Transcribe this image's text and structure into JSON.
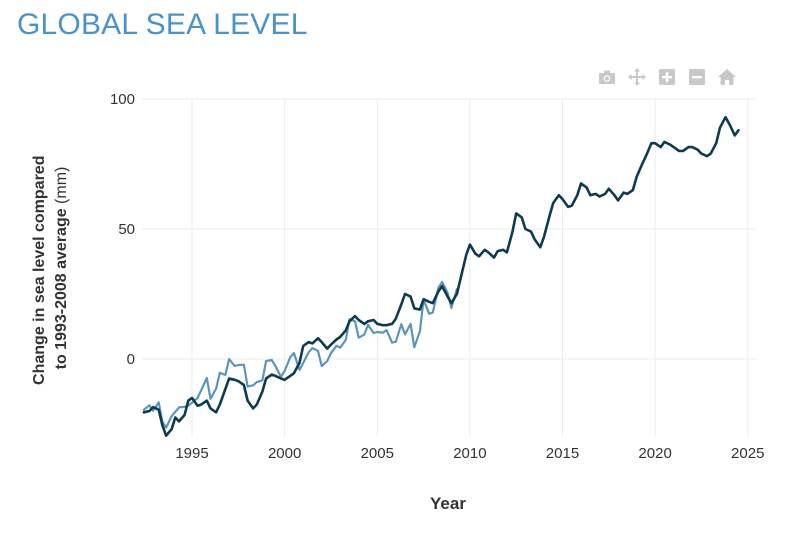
{
  "page": {
    "title": "GLOBAL SEA LEVEL"
  },
  "modebar": {
    "buttons": [
      {
        "name": "camera-icon"
      },
      {
        "name": "pan-icon"
      },
      {
        "name": "zoom-in-icon"
      },
      {
        "name": "zoom-out-icon"
      },
      {
        "name": "home-icon"
      }
    ]
  },
  "colors": {
    "title": "#4a93c9",
    "series_dark": "#0d3b4f",
    "series_light": "#5b95bd",
    "icon": "#c8c8c8",
    "grid": "#ececec"
  },
  "chart_data": {
    "type": "line",
    "xlabel": "Year",
    "ylabel_bold": "Change in sea level compared to 1993-2008 average",
    "ylabel_unit": "(mm)",
    "xlim": [
      1992.3,
      2025.5
    ],
    "ylim": [
      -30,
      100
    ],
    "xticks": [
      1995,
      2000,
      2005,
      2010,
      2015,
      2020,
      2025
    ],
    "yticks": [
      0,
      50,
      100
    ],
    "grid": true,
    "series": [
      {
        "color": "#5b95bd",
        "points": [
          [
            1992.4,
            -19.5
          ],
          [
            1992.7,
            -17.8
          ],
          [
            1992.9,
            -19.9
          ],
          [
            1993.2,
            -16.7
          ],
          [
            1993.4,
            -24.1
          ],
          [
            1993.6,
            -26.4
          ],
          [
            1993.9,
            -22.0
          ],
          [
            1994.1,
            -20.3
          ],
          [
            1994.3,
            -18.6
          ],
          [
            1994.6,
            -18.4
          ],
          [
            1994.8,
            -17.9
          ],
          [
            1995.0,
            -16.8
          ],
          [
            1995.3,
            -15.0
          ],
          [
            1995.5,
            -11.9
          ],
          [
            1995.8,
            -7.3
          ],
          [
            1996.0,
            -15.3
          ],
          [
            1996.3,
            -11.4
          ],
          [
            1996.5,
            -5.3
          ],
          [
            1996.8,
            -6.1
          ],
          [
            1997.0,
            0.0
          ],
          [
            1997.3,
            -2.7
          ],
          [
            1997.5,
            -2.3
          ],
          [
            1997.8,
            -2.2
          ],
          [
            1998.0,
            -10.6
          ],
          [
            1998.3,
            -10.1
          ],
          [
            1998.5,
            -8.9
          ],
          [
            1998.8,
            -8.2
          ],
          [
            1999.0,
            -0.8
          ],
          [
            1999.3,
            -0.4
          ],
          [
            1999.5,
            -2.7
          ],
          [
            1999.8,
            -6.9
          ],
          [
            2000.0,
            -4.6
          ],
          [
            2000.3,
            0.6
          ],
          [
            2000.5,
            2.3
          ],
          [
            2000.8,
            -4.2
          ],
          [
            2001.0,
            -1.5
          ],
          [
            2001.3,
            2.6
          ],
          [
            2001.5,
            4.2
          ],
          [
            2001.8,
            3.1
          ],
          [
            2002.0,
            -2.7
          ],
          [
            2002.3,
            -0.8
          ],
          [
            2002.5,
            2.2
          ],
          [
            2002.8,
            5.1
          ],
          [
            2003.0,
            4.4
          ],
          [
            2003.3,
            7.4
          ],
          [
            2003.5,
            15.3
          ],
          [
            2003.8,
            14.5
          ],
          [
            2004.0,
            8.2
          ],
          [
            2004.3,
            9.4
          ],
          [
            2004.5,
            13.1
          ],
          [
            2004.8,
            10.0
          ],
          [
            2005.0,
            10.4
          ],
          [
            2005.3,
            10.1
          ],
          [
            2005.5,
            11.1
          ],
          [
            2005.8,
            6.3
          ],
          [
            2006.0,
            6.6
          ],
          [
            2006.3,
            13.4
          ],
          [
            2006.5,
            9.5
          ],
          [
            2006.8,
            13.5
          ],
          [
            2007.0,
            4.5
          ],
          [
            2007.3,
            10.7
          ],
          [
            2007.5,
            22.9
          ],
          [
            2007.8,
            17.4
          ],
          [
            2008.0,
            17.9
          ],
          [
            2008.3,
            27.4
          ],
          [
            2008.5,
            29.6
          ],
          [
            2008.8,
            25.5
          ],
          [
            2009.0,
            19.6
          ],
          [
            2009.3,
            26.9
          ]
        ]
      },
      {
        "color": "#0d3b4f",
        "points": [
          [
            1992.4,
            -20.5
          ],
          [
            1992.7,
            -20.0
          ],
          [
            1992.9,
            -18.5
          ],
          [
            1993.2,
            -19.5
          ],
          [
            1993.4,
            -25.5
          ],
          [
            1993.6,
            -29.5
          ],
          [
            1993.9,
            -27.0
          ],
          [
            1994.1,
            -22.5
          ],
          [
            1994.3,
            -24.0
          ],
          [
            1994.6,
            -21.5
          ],
          [
            1994.8,
            -16.0
          ],
          [
            1995.0,
            -15.0
          ],
          [
            1995.3,
            -18.0
          ],
          [
            1995.5,
            -17.5
          ],
          [
            1995.8,
            -16.0
          ],
          [
            1996.0,
            -19.0
          ],
          [
            1996.3,
            -20.5
          ],
          [
            1996.5,
            -17.5
          ],
          [
            1996.8,
            -11.5
          ],
          [
            1997.0,
            -7.5
          ],
          [
            1997.3,
            -8.0
          ],
          [
            1997.5,
            -8.5
          ],
          [
            1997.8,
            -10.0
          ],
          [
            1998.0,
            -16.0
          ],
          [
            1998.3,
            -19.0
          ],
          [
            1998.5,
            -17.5
          ],
          [
            1998.8,
            -12.5
          ],
          [
            1999.0,
            -7.5
          ],
          [
            1999.3,
            -6.0
          ],
          [
            1999.5,
            -6.5
          ],
          [
            1999.8,
            -7.5
          ],
          [
            2000.0,
            -8.0
          ],
          [
            2000.3,
            -6.5
          ],
          [
            2000.5,
            -5.5
          ],
          [
            2000.8,
            -1.5
          ],
          [
            2001.0,
            5.0
          ],
          [
            2001.3,
            6.5
          ],
          [
            2001.5,
            6.0
          ],
          [
            2001.8,
            8.0
          ],
          [
            2002.0,
            6.5
          ],
          [
            2002.3,
            4.0
          ],
          [
            2002.5,
            5.5
          ],
          [
            2002.8,
            7.5
          ],
          [
            2003.0,
            8.5
          ],
          [
            2003.3,
            11.0
          ],
          [
            2003.5,
            14.5
          ],
          [
            2003.8,
            16.5
          ],
          [
            2004.0,
            15.0
          ],
          [
            2004.3,
            13.5
          ],
          [
            2004.5,
            14.5
          ],
          [
            2004.8,
            15.0
          ],
          [
            2005.0,
            13.5
          ],
          [
            2005.3,
            13.0
          ],
          [
            2005.5,
            13.0
          ],
          [
            2005.8,
            13.5
          ],
          [
            2006.0,
            15.5
          ],
          [
            2006.3,
            21.0
          ],
          [
            2006.5,
            25.0
          ],
          [
            2006.8,
            24.0
          ],
          [
            2007.0,
            19.5
          ],
          [
            2007.3,
            19.0
          ],
          [
            2007.5,
            23.0
          ],
          [
            2007.8,
            22.0
          ],
          [
            2008.0,
            21.5
          ],
          [
            2008.3,
            26.0
          ],
          [
            2008.5,
            28.0
          ],
          [
            2008.8,
            24.0
          ],
          [
            2009.0,
            21.5
          ],
          [
            2009.3,
            25.0
          ],
          [
            2009.5,
            31.0
          ],
          [
            2009.8,
            40.0
          ],
          [
            2010.0,
            44.0
          ],
          [
            2010.3,
            40.5
          ],
          [
            2010.5,
            39.5
          ],
          [
            2010.8,
            42.0
          ],
          [
            2011.0,
            41.0
          ],
          [
            2011.3,
            39.0
          ],
          [
            2011.5,
            41.5
          ],
          [
            2011.8,
            42.0
          ],
          [
            2012.0,
            41.0
          ],
          [
            2012.3,
            49.0
          ],
          [
            2012.5,
            56.0
          ],
          [
            2012.8,
            54.5
          ],
          [
            2013.0,
            50.0
          ],
          [
            2013.3,
            49.0
          ],
          [
            2013.5,
            46.0
          ],
          [
            2013.8,
            43.0
          ],
          [
            2014.0,
            47.0
          ],
          [
            2014.3,
            55.0
          ],
          [
            2014.5,
            60.0
          ],
          [
            2014.8,
            63.0
          ],
          [
            2015.0,
            61.5
          ],
          [
            2015.3,
            58.5
          ],
          [
            2015.5,
            59.0
          ],
          [
            2015.8,
            63.0
          ],
          [
            2016.0,
            67.5
          ],
          [
            2016.3,
            66.0
          ],
          [
            2016.5,
            63.0
          ],
          [
            2016.8,
            63.5
          ],
          [
            2017.0,
            62.5
          ],
          [
            2017.3,
            63.5
          ],
          [
            2017.5,
            65.5
          ],
          [
            2017.8,
            63.0
          ],
          [
            2018.0,
            61.0
          ],
          [
            2018.3,
            64.0
          ],
          [
            2018.5,
            63.5
          ],
          [
            2018.8,
            65.0
          ],
          [
            2019.0,
            70.0
          ],
          [
            2019.3,
            75.0
          ],
          [
            2019.5,
            78.0
          ],
          [
            2019.8,
            83.0
          ],
          [
            2020.0,
            83.0
          ],
          [
            2020.3,
            81.5
          ],
          [
            2020.5,
            83.5
          ],
          [
            2020.8,
            82.5
          ],
          [
            2021.0,
            81.5
          ],
          [
            2021.3,
            80.0
          ],
          [
            2021.5,
            80.0
          ],
          [
            2021.8,
            81.5
          ],
          [
            2022.0,
            81.5
          ],
          [
            2022.3,
            80.5
          ],
          [
            2022.5,
            79.0
          ],
          [
            2022.8,
            78.0
          ],
          [
            2023.0,
            79.0
          ],
          [
            2023.3,
            83.0
          ],
          [
            2023.5,
            89.0
          ],
          [
            2023.8,
            93.0
          ],
          [
            2024.0,
            90.5
          ],
          [
            2024.3,
            86.0
          ],
          [
            2024.5,
            88.0
          ]
        ]
      }
    ]
  }
}
